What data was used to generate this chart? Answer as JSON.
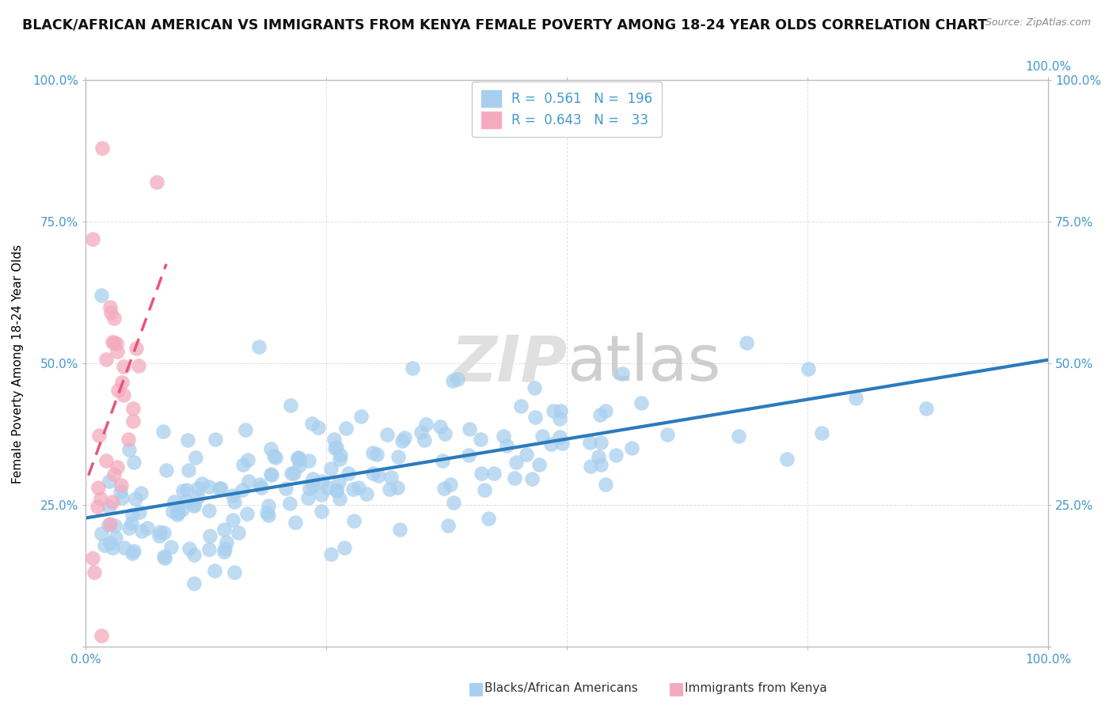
{
  "title": "BLACK/AFRICAN AMERICAN VS IMMIGRANTS FROM KENYA FEMALE POVERTY AMONG 18-24 YEAR OLDS CORRELATION CHART",
  "source": "Source: ZipAtlas.com",
  "ylabel": "Female Poverty Among 18-24 Year Olds",
  "xlim": [
    0,
    1
  ],
  "ylim": [
    0,
    1
  ],
  "blue_R": 0.561,
  "blue_N": 196,
  "pink_R": 0.643,
  "pink_N": 33,
  "blue_color": "#A8D0EE",
  "pink_color": "#F4AABD",
  "blue_line_color": "#2B7BBD",
  "pink_line_color": "#E8557A",
  "tick_color": "#4499CC",
  "watermark_color": "#DDDDDD",
  "background_color": "#FFFFFF",
  "grid_color": "#E0E0E0",
  "title_fontsize": 12.5,
  "axis_label_fontsize": 11,
  "tick_label_fontsize": 11,
  "legend_fontsize": 12,
  "yticks": [
    0.0,
    0.25,
    0.5,
    0.75,
    1.0
  ],
  "ytick_labels_left": [
    "",
    "25.0%",
    "50.0%",
    "75.0%",
    "100.0%"
  ],
  "ytick_labels_right": [
    "",
    "25.0%",
    "50.0%",
    "75.0%",
    "100.0%"
  ],
  "xticks": [
    0.0,
    0.25,
    0.5,
    0.75,
    1.0
  ],
  "xtick_labels_bottom": [
    "0.0%",
    "",
    "",
    "",
    "100.0%"
  ],
  "xtick_labels_top": [
    "",
    "",
    "",
    "",
    "100.0%"
  ]
}
